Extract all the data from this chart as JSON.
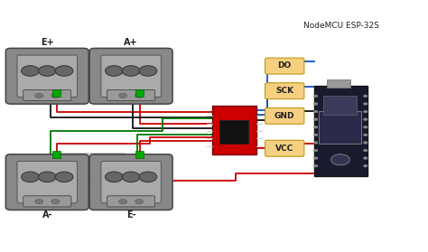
{
  "bg_color": "#ffffff",
  "nodemcu_label": "NodeMCU ESP-32S",
  "pin_labels": [
    "DO",
    "SCK",
    "GND",
    "VCC"
  ],
  "sensor_labels": [
    "E+",
    "A+",
    "A-",
    "E-"
  ],
  "wire_colors": {
    "red": "#cc0000",
    "black": "#111111",
    "green": "#007700",
    "blue": "#1155cc"
  },
  "pin_box_color": "#f5d080",
  "sensor_body_color": "#888888",
  "sensor_inner_color": "#aaaaaa",
  "amp_board_color": "#cc0000",
  "nodemcu_board_color": "#1a1a2e"
}
